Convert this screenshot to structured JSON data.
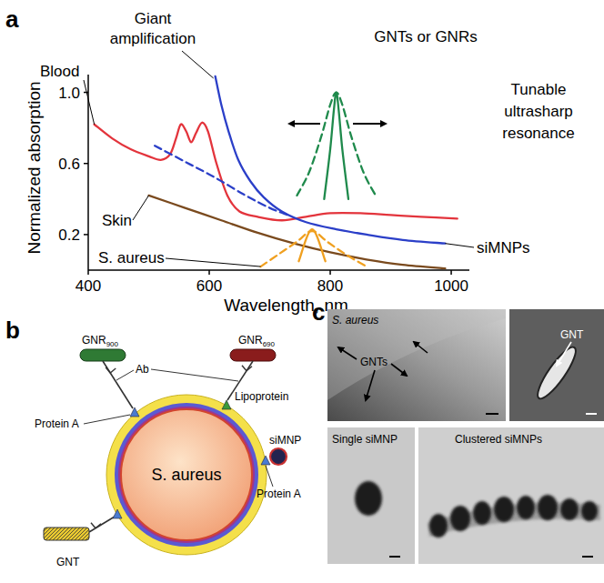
{
  "chart_data": {
    "type": "line",
    "xlabel": "Wavelength, nm",
    "ylabel": "Normalized absorption",
    "xlim": [
      400,
      1030
    ],
    "ylim": [
      0,
      1.1
    ],
    "xticks": [
      400,
      600,
      800,
      1000
    ],
    "yticks": [
      0.2,
      0.6,
      {
        "value": 1,
        "label": "1.0"
      }
    ],
    "grid": false,
    "series": [
      {
        "name": "Blood",
        "color": "#e3343c",
        "line_style": "solid",
        "x": [
          410,
          440,
          470,
          500,
          520,
          535,
          545,
          553,
          562,
          570,
          578,
          588,
          598,
          612,
          630,
          650,
          680,
          720,
          760,
          800,
          850,
          900,
          950,
          1010
        ],
        "values": [
          0.82,
          0.74,
          0.68,
          0.64,
          0.62,
          0.65,
          0.74,
          0.82,
          0.78,
          0.72,
          0.77,
          0.83,
          0.78,
          0.6,
          0.42,
          0.33,
          0.3,
          0.28,
          0.3,
          0.32,
          0.32,
          0.31,
          0.3,
          0.29
        ]
      },
      {
        "name": "siMNPs",
        "color": "#2b3fc8",
        "line_style": "solid",
        "x": [
          610,
          620,
          632,
          648,
          668,
          690,
          720,
          760,
          810,
          860,
          920,
          990
        ],
        "values": [
          1.09,
          0.93,
          0.78,
          0.62,
          0.5,
          0.41,
          0.33,
          0.27,
          0.23,
          0.2,
          0.17,
          0.15
        ]
      },
      {
        "color": "#2b3fc8",
        "line_style": "dashed",
        "x": [
          510,
          560,
          610,
          660,
          700,
          730
        ],
        "values": [
          0.7,
          0.61,
          0.52,
          0.42,
          0.35,
          0.31
        ]
      },
      {
        "name": "Skin",
        "color": "#7a4a1e",
        "line_style": "solid",
        "x": [
          500,
          560,
          620,
          680,
          740,
          800,
          860,
          920,
          990
        ],
        "values": [
          0.42,
          0.35,
          0.28,
          0.21,
          0.15,
          0.1,
          0.06,
          0.03,
          0.01
        ]
      },
      {
        "name": "S. aureus",
        "color": "#f0a020",
        "line_style": "dashed",
        "x": [
          685,
          715,
          745,
          770,
          795,
          825,
          860
        ],
        "values": [
          0.02,
          0.09,
          0.16,
          0.22,
          0.16,
          0.09,
          0.02
        ]
      },
      {
        "color": "#f0a020",
        "line_style": "solid",
        "x": [
          748,
          770,
          792
        ],
        "values": [
          0.05,
          0.23,
          0.05
        ]
      },
      {
        "color": "#1f8a4c",
        "line_style": "dashed",
        "x": [
          745,
          765,
          785,
          800,
          810,
          820,
          835,
          855,
          875
        ],
        "values": [
          0.42,
          0.55,
          0.75,
          0.93,
          1.0,
          0.93,
          0.75,
          0.55,
          0.42
        ]
      },
      {
        "color": "#1f8a4c",
        "line_style": "solid",
        "x": [
          790,
          800,
          806,
          810,
          814,
          820,
          830
        ],
        "values": [
          0.4,
          0.68,
          0.9,
          1.0,
          0.9,
          0.68,
          0.4
        ]
      }
    ],
    "annotations": [
      {
        "lines": [
          "Giant",
          "amplification"
        ]
      },
      {
        "lines": [
          "GNTs or GNRs"
        ]
      },
      {
        "lines": [
          "Tunable",
          "ultrasharp",
          "resonance"
        ]
      }
    ]
  },
  "panel_labels": [
    "a",
    "b",
    "c"
  ],
  "diagram": {
    "center_label": "S. aureus",
    "labels": [
      {
        "text": "GNR",
        "sub": "900"
      },
      {
        "text": "GNR",
        "sub": "690"
      },
      {
        "text": "Ab"
      },
      {
        "text": "Lipoprotein"
      },
      {
        "text": "Protein A"
      },
      {
        "text": "siMNP"
      },
      {
        "text": "Protein A"
      },
      {
        "text": "GNT"
      }
    ]
  },
  "micrographs": [
    {
      "title": "S. aureus",
      "label": "GNTs"
    },
    {
      "label": "GNT"
    },
    {
      "title": "Single siMNP"
    },
    {
      "title": "Clustered siMNPs"
    }
  ]
}
